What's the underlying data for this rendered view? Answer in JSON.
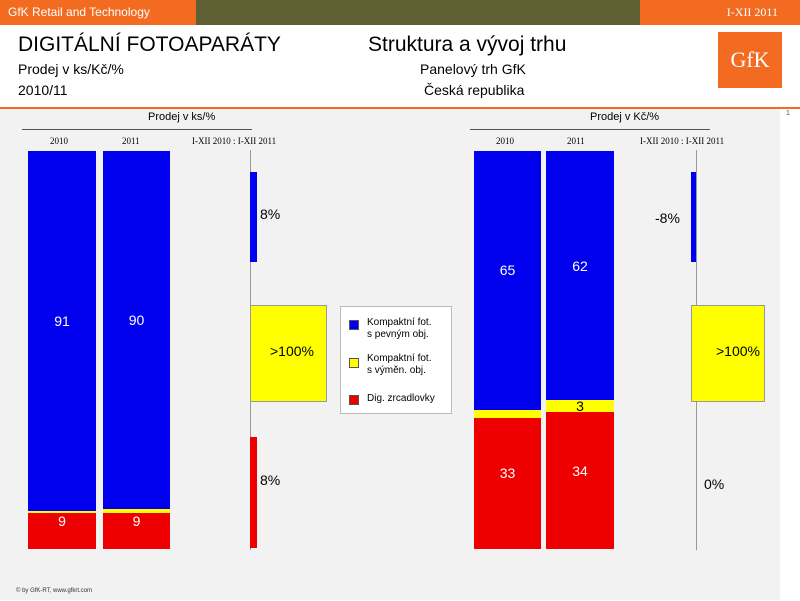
{
  "header": {
    "brand_bar": "GfK Retail and Technology",
    "period_bar": "I-XII 2011",
    "title": "DIGITÁLNÍ FOTOAPARÁTY",
    "subtitle1": "Prodej v ks/Kč/%",
    "subtitle2": "2010/11",
    "center_title": "Struktura a vývoj trhu",
    "center_sub1": "Panelový trh GfK",
    "center_sub2": "Česká republika",
    "logo": "GfK",
    "page_number": "1"
  },
  "legend": [
    {
      "line1": "Kompaktní fot.",
      "line2": "s pevným obj.",
      "color": "#0000ee"
    },
    {
      "line1": "Kompaktní fot.",
      "line2": "s výměn. obj.",
      "color": "#ffff00"
    },
    {
      "line1": "Dig. zrcadlovky",
      "line2": "",
      "color": "#ee0000"
    }
  ],
  "footer": "© by GfK-RT, www.gfkrt.com",
  "chart_data": [
    {
      "type": "bar",
      "stacked": true,
      "title": "Prodej v ks/%",
      "categories": [
        "2010",
        "2011"
      ],
      "change_header": "I-XII 2010 : I-XII 2011",
      "series": [
        {
          "name": "Kompaktní fot. s pevným obj.",
          "values": [
            91,
            90
          ],
          "labels": [
            "91",
            "90"
          ],
          "color": "#0000ee",
          "change": "8%"
        },
        {
          "name": "Kompaktní fot. s výměn. obj.",
          "values": [
            0.5,
            1
          ],
          "labels": [
            "",
            ""
          ],
          "color": "#ffff00",
          "change": ">100%"
        },
        {
          "name": "Dig. zrcadlovky",
          "values": [
            9,
            9
          ],
          "labels": [
            "9",
            "9"
          ],
          "color": "#ee0000",
          "change": "8%"
        }
      ]
    },
    {
      "type": "bar",
      "stacked": true,
      "title": "Prodej v Kč/%",
      "categories": [
        "2010",
        "2011"
      ],
      "change_header": "I-XII 2010 : I-XII 2011",
      "series": [
        {
          "name": "Kompaktní fot. s pevným obj.",
          "values": [
            65,
            62
          ],
          "labels": [
            "65",
            "62"
          ],
          "color": "#0000ee",
          "change": "-8%"
        },
        {
          "name": "Kompaktní fot. s výměn. obj.",
          "values": [
            2,
            3
          ],
          "labels": [
            "",
            "3"
          ],
          "color": "#ffff00",
          "change": ">100%"
        },
        {
          "name": "Dig. zrcadlovky",
          "values": [
            33,
            34
          ],
          "labels": [
            "33",
            "34"
          ],
          "color": "#ee0000",
          "change": "0%"
        }
      ]
    }
  ]
}
